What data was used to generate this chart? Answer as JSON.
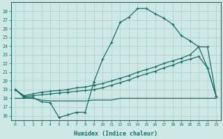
{
  "xlabel": "Humidex (Indice chaleur)",
  "background_color": "#cde8e5",
  "grid_color": "#aacfcc",
  "line_color": "#1a6e65",
  "xlim": [
    -0.5,
    23.5
  ],
  "ylim": [
    15.5,
    29.0
  ],
  "xticks": [
    0,
    1,
    2,
    3,
    4,
    5,
    6,
    7,
    8,
    9,
    10,
    11,
    12,
    13,
    14,
    15,
    16,
    17,
    18,
    19,
    20,
    21,
    22,
    23
  ],
  "yticks": [
    16,
    17,
    18,
    19,
    20,
    21,
    22,
    23,
    24,
    25,
    26,
    27,
    28
  ],
  "series1_x": [
    0,
    1,
    2,
    3,
    4,
    5,
    6,
    7,
    8,
    9,
    10,
    11,
    12,
    13,
    14,
    15,
    16,
    17,
    18,
    19,
    20,
    21,
    22,
    23
  ],
  "series1_y": [
    19.0,
    18.1,
    18.1,
    17.6,
    17.5,
    15.8,
    16.1,
    16.4,
    16.4,
    19.9,
    22.5,
    24.4,
    26.7,
    27.3,
    28.3,
    28.3,
    27.7,
    27.2,
    26.5,
    25.2,
    24.6,
    23.9,
    21.5,
    18.2
  ],
  "series2_x": [
    0,
    1,
    2,
    3,
    4,
    5,
    6,
    7,
    8,
    9,
    10,
    11,
    12,
    13,
    14,
    15,
    16,
    17,
    18,
    19,
    20,
    21,
    22,
    23
  ],
  "series2_y": [
    19.0,
    18.3,
    18.5,
    18.7,
    18.8,
    18.9,
    19.0,
    19.2,
    19.3,
    19.5,
    19.7,
    20.0,
    20.3,
    20.6,
    21.0,
    21.3,
    21.6,
    22.0,
    22.3,
    22.6,
    23.0,
    23.9,
    23.9,
    18.2
  ],
  "series3_x": [
    0,
    1,
    2,
    3,
    4,
    5,
    6,
    7,
    8,
    9,
    10,
    11,
    12,
    13,
    14,
    15,
    16,
    17,
    18,
    19,
    20,
    21,
    22,
    23
  ],
  "series3_y": [
    19.0,
    18.2,
    18.3,
    18.4,
    18.5,
    18.6,
    18.7,
    18.8,
    18.9,
    19.0,
    19.2,
    19.5,
    19.8,
    20.1,
    20.5,
    20.8,
    21.1,
    21.5,
    21.8,
    22.2,
    22.5,
    22.8,
    21.5,
    18.2
  ],
  "series4_x": [
    0,
    1,
    2,
    3,
    4,
    5,
    6,
    7,
    8,
    9,
    10,
    11,
    12,
    13,
    14,
    15,
    16,
    17,
    18,
    19,
    20,
    21,
    22,
    23
  ],
  "series4_y": [
    18.0,
    18.0,
    18.0,
    17.8,
    17.7,
    17.7,
    17.7,
    17.7,
    17.7,
    17.8,
    17.8,
    17.8,
    18.0,
    18.0,
    18.0,
    18.0,
    18.0,
    18.0,
    18.0,
    18.0,
    18.0,
    18.0,
    18.0,
    18.0
  ]
}
